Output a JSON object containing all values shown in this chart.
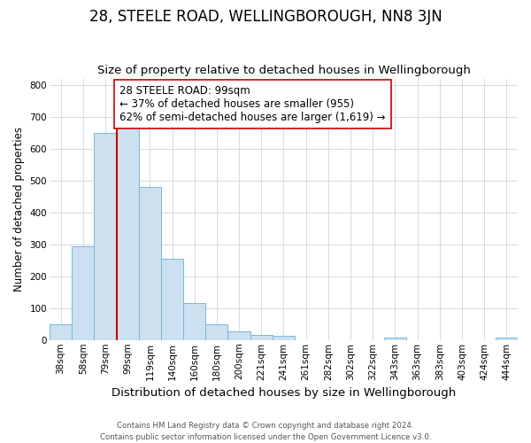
{
  "title": "28, STEELE ROAD, WELLINGBOROUGH, NN8 3JN",
  "subtitle": "Size of property relative to detached houses in Wellingborough",
  "xlabel": "Distribution of detached houses by size in Wellingborough",
  "ylabel": "Number of detached properties",
  "bin_labels": [
    "38sqm",
    "58sqm",
    "79sqm",
    "99sqm",
    "119sqm",
    "140sqm",
    "160sqm",
    "180sqm",
    "200sqm",
    "221sqm",
    "241sqm",
    "261sqm",
    "282sqm",
    "302sqm",
    "322sqm",
    "343sqm",
    "363sqm",
    "383sqm",
    "403sqm",
    "424sqm",
    "444sqm"
  ],
  "bar_heights": [
    48,
    295,
    650,
    665,
    480,
    255,
    115,
    48,
    28,
    15,
    13,
    0,
    0,
    0,
    0,
    8,
    0,
    0,
    0,
    0,
    7
  ],
  "bar_color": "#cce0f0",
  "bar_edge_color": "#7ab8d9",
  "vline_x": 3.0,
  "vline_color": "#cc0000",
  "annotation_line1": "28 STEELE ROAD: 99sqm",
  "annotation_line2": "← 37% of detached houses are smaller (955)",
  "annotation_line3": "62% of semi-detached houses are larger (1,619) →",
  "annotation_box_edgecolor": "#cc0000",
  "annotation_fontsize": 8.5,
  "ylim": [
    0,
    820
  ],
  "yticks": [
    0,
    100,
    200,
    300,
    400,
    500,
    600,
    700,
    800
  ],
  "title_fontsize": 12,
  "subtitle_fontsize": 9.5,
  "xlabel_fontsize": 9.5,
  "ylabel_fontsize": 8.5,
  "footer_text": "Contains HM Land Registry data © Crown copyright and database right 2024.\nContains public sector information licensed under the Open Government Licence v3.0.",
  "background_color": "#ffffff",
  "grid_color": "#d5dde5",
  "tick_fontsize": 7.5
}
